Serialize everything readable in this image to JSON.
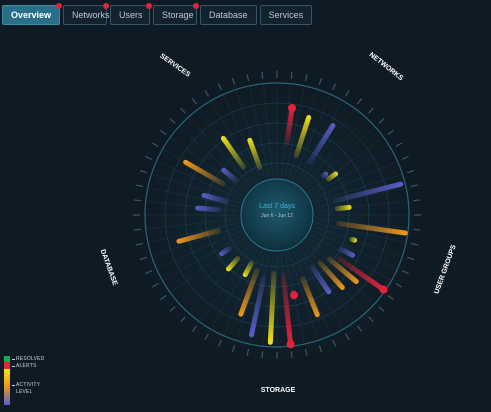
{
  "tabs": [
    {
      "label": "Overview",
      "active": true,
      "alert": true
    },
    {
      "label": "Networks",
      "active": false,
      "alert": true
    },
    {
      "label": "Users",
      "active": false,
      "alert": true
    },
    {
      "label": "Storage",
      "active": false,
      "alert": true
    },
    {
      "label": "Database",
      "active": false,
      "alert": false
    },
    {
      "label": "Services",
      "active": false,
      "alert": false
    }
  ],
  "center": {
    "title": "Last 7 days",
    "subtitle": "Jun 6 - Jun 12"
  },
  "sections": [
    "SERVICES",
    "NETWORKS",
    "USER GROUPS",
    "STORAGE",
    "DATABASE"
  ],
  "legend": {
    "resolved": "RESOLVED",
    "alerts": "ALERTS",
    "activity": "ACTIVITY",
    "level": "LEVEL"
  },
  "colors": {
    "resolved": "#1fa84a",
    "alert": "#e3233b",
    "high": "#f5e31c",
    "mid": "#f09a1c",
    "low": "#5a5fc9"
  }
}
